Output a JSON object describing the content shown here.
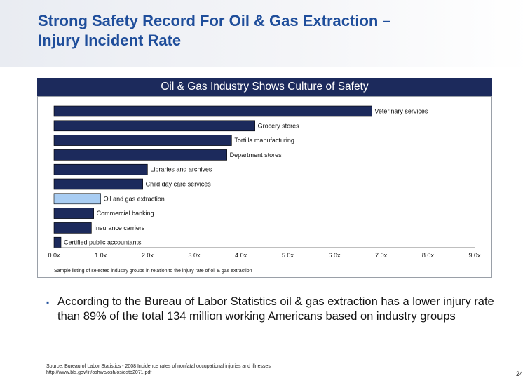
{
  "slide": {
    "title_line1": "Strong Safety Record For Oil & Gas Extraction –",
    "title_line2": "Injury Incident Rate",
    "page_number": "24"
  },
  "chart_banner": "Oil & Gas Industry Shows Culture of Safety",
  "bullet": {
    "marker": "▪",
    "text": "According to the Bureau of Labor Statistics oil & gas extraction has a lower injury rate than 89% of the total 134 million working Americans based on industry groups"
  },
  "source": {
    "line1": "Source: Bureau of Labor Statistics - 2008 Incidence rates of nonfatal occupational injuries and illnesses",
    "line2": "http://www.bls.gov/iif/oshwc/osh/os/ostb2071.pdf"
  },
  "chart_data": {
    "type": "bar",
    "orientation": "horizontal",
    "categories": [
      "Veterinary services",
      "Grocery stores",
      "Tortilla manufacturing",
      "Department stores",
      "Libraries and archives",
      "Child day care services",
      "Oil and gas extraction",
      "Commercial banking",
      "Insurance carriers",
      "Certified public accountants"
    ],
    "values": [
      6.8,
      4.3,
      3.8,
      3.7,
      2.0,
      1.9,
      1.0,
      0.85,
      0.8,
      0.15
    ],
    "highlight_category": "Oil and gas extraction",
    "xlim": [
      0,
      9
    ],
    "x_ticks": [
      "0.0x",
      "1.0x",
      "2.0x",
      "3.0x",
      "4.0x",
      "5.0x",
      "6.0x",
      "7.0x",
      "8.0x",
      "9.0x"
    ],
    "footnote": "Sample listing of selected industry groups in relation to the injury rate of oil & gas extraction",
    "colors": {
      "bar": "#1c2a5c",
      "highlight": "#a9cdf3",
      "bar_stroke": "#000000"
    },
    "grid": false
  }
}
